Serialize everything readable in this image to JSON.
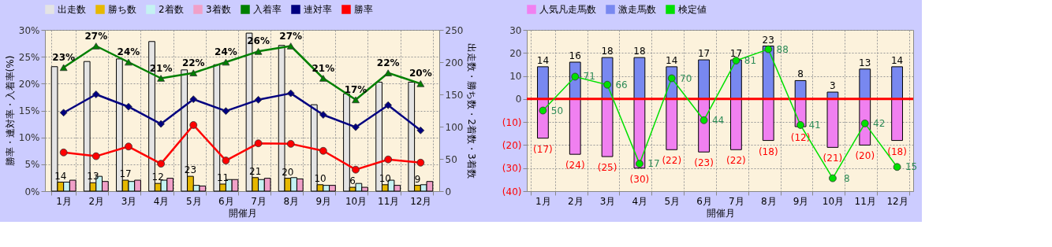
{
  "chart_data": [
    {
      "type": "bar",
      "xlabel": "開催月",
      "ylabel": "勝率・連対率・入着率(%)",
      "y2label": "出走数・勝ち数・2着数・3着数",
      "categories": [
        "1月",
        "2月",
        "3月",
        "4月",
        "5月",
        "6月",
        "7月",
        "8月",
        "9月",
        "10月",
        "11月",
        "12月"
      ],
      "ylim": [
        0,
        30
      ],
      "yticks": [
        {
          "value": 0,
          "label": "0%"
        },
        {
          "value": 5,
          "label": "5%"
        },
        {
          "value": 10,
          "label": "10%"
        },
        {
          "value": 15,
          "label": "15%"
        },
        {
          "value": 20,
          "label": "20%"
        },
        {
          "value": 25,
          "label": "25%"
        },
        {
          "value": 30,
          "label": "30%"
        }
      ],
      "y2lim": [
        0,
        250
      ],
      "y2ticks": [
        0,
        50,
        100,
        150,
        200,
        250
      ],
      "grid": true,
      "legend": "top",
      "series": [
        {
          "name": "出走数",
          "type": "bar",
          "axis": "y2",
          "color": "#e4e4e4",
          "values": [
            193,
            201,
            205,
            232,
            188,
            196,
            245,
            226,
            134,
            151,
            169,
            169
          ]
        },
        {
          "name": "勝ち数",
          "type": "bar",
          "axis": "y2",
          "color": "#e6b800",
          "values": [
            14,
            13,
            17,
            12,
            23,
            11,
            21,
            20,
            10,
            6,
            10,
            9
          ],
          "value_labels": [
            "14",
            "13",
            "17",
            "12",
            "23",
            "11",
            "21",
            "20",
            "10",
            "6",
            "10",
            "9"
          ]
        },
        {
          "name": "2着数",
          "type": "bar",
          "axis": "y2",
          "color": "#c4f2f2",
          "values": [
            14,
            23,
            15,
            17,
            9,
            18,
            18,
            21,
            9,
            12,
            17,
            10
          ]
        },
        {
          "name": "3着数",
          "type": "bar",
          "axis": "y2",
          "color": "#f0a0c8",
          "values": [
            17,
            15,
            17,
            20,
            8,
            18,
            20,
            19,
            9,
            6,
            9,
            15
          ]
        },
        {
          "name": "入着率",
          "type": "line",
          "color": "#008000",
          "marker": "triangle",
          "values": [
            23,
            27,
            24,
            21,
            22,
            24,
            26,
            27,
            21,
            17,
            22,
            20
          ],
          "value_labels": [
            "23%",
            "27%",
            "24%",
            "21%",
            "22%",
            "24%",
            "26%",
            "27%",
            "21%",
            "17%",
            "22%",
            "20%"
          ]
        },
        {
          "name": "連対率",
          "type": "line",
          "color": "#000080",
          "marker": "diamond",
          "values": [
            14.6,
            18.0,
            15.7,
            12.5,
            17.1,
            14.9,
            17.0,
            18.2,
            14.2,
            11.9,
            16.0,
            11.3
          ]
        },
        {
          "name": "勝率",
          "type": "line",
          "color": "#ff0000",
          "marker": "circle",
          "values": [
            7.2,
            6.5,
            8.3,
            5.1,
            12.3,
            5.7,
            8.9,
            8.8,
            7.5,
            4.0,
            5.9,
            5.3
          ]
        }
      ]
    },
    {
      "type": "bar",
      "stacked": true,
      "xlabel": "開催月",
      "categories": [
        "1月",
        "2月",
        "3月",
        "4月",
        "5月",
        "6月",
        "7月",
        "8月",
        "9月",
        "10月",
        "11月",
        "12月"
      ],
      "ylim": [
        -40,
        30
      ],
      "yticks": [
        30,
        20,
        10,
        0,
        {
          "value": -10,
          "label": "(10)"
        },
        {
          "value": -20,
          "label": "(20)"
        },
        {
          "value": -30,
          "label": "(30)"
        },
        {
          "value": -40,
          "label": "(40)"
        }
      ],
      "y2lim": [
        0,
        100
      ],
      "grid": true,
      "legend": "top",
      "ref_lines": [
        {
          "axis": "y",
          "value": 0,
          "color": "#ff0000"
        }
      ],
      "series": [
        {
          "name": "人気凡走馬数",
          "color": "#f080f0",
          "values": [
            -17,
            -24,
            -25,
            -30,
            -22,
            -23,
            -22,
            -18,
            -12,
            -21,
            -20,
            -18
          ],
          "value_labels": [
            "(17)",
            "(24)",
            "(25)",
            "(30)",
            "(22)",
            "(23)",
            "(22)",
            "(18)",
            "(12)",
            "(21)",
            "(20)",
            "(18)"
          ]
        },
        {
          "name": "激走馬数",
          "color": "#7888f0",
          "values": [
            14,
            16,
            18,
            18,
            14,
            17,
            17,
            23,
            8,
            3,
            13,
            14
          ],
          "value_labels": [
            "14",
            "16",
            "18",
            "18",
            "14",
            "17",
            "17",
            "23",
            "8",
            "3",
            "13",
            "14"
          ]
        },
        {
          "name": "検定値",
          "type": "line",
          "axis": "y2",
          "color": "#00e000",
          "marker": "circle",
          "values": [
            50,
            71,
            66,
            17,
            70,
            44,
            81,
            88,
            41,
            8,
            42,
            15
          ],
          "value_labels": [
            "50",
            "71",
            "66",
            "17",
            "70",
            "44",
            "81",
            "88",
            "41",
            "8",
            "42",
            "15"
          ]
        }
      ]
    }
  ]
}
